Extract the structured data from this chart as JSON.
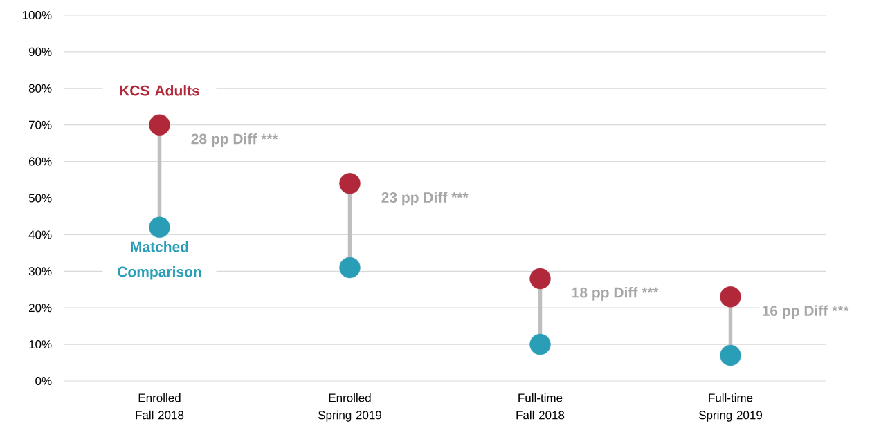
{
  "chart_data": {
    "type": "scatter",
    "categories": [
      "Enrolled Fall 2018",
      "Enrolled Spring 2019",
      "Full-time Fall 2018",
      "Full-time Spring 2019"
    ],
    "series": [
      {
        "name": "KCS Adults",
        "color": "#b0283a",
        "values": [
          70,
          54,
          28,
          23
        ]
      },
      {
        "name": "Matched Comparison",
        "color": "#2a9eb6",
        "values": [
          42,
          31,
          10,
          7
        ]
      }
    ],
    "ylim": [
      0,
      100
    ],
    "yticks": [
      {
        "value": 0,
        "label": "0%"
      },
      {
        "value": 10,
        "label": "10%"
      },
      {
        "value": 20,
        "label": "20%"
      },
      {
        "value": 30,
        "label": "30%"
      },
      {
        "value": 40,
        "label": "40%"
      },
      {
        "value": 50,
        "label": "50%"
      },
      {
        "value": 60,
        "label": "60%"
      },
      {
        "value": 70,
        "label": "70%"
      },
      {
        "value": 80,
        "label": "80%"
      },
      {
        "value": 90,
        "label": "90%"
      },
      {
        "value": 100,
        "label": "100%"
      }
    ],
    "grid": "y",
    "legend": "left",
    "marker": "circle",
    "annotations": [
      "28 pp Diff ***",
      "23 pp Diff ***",
      "18 pp Diff ***",
      "16 pp Diff ***"
    ]
  }
}
